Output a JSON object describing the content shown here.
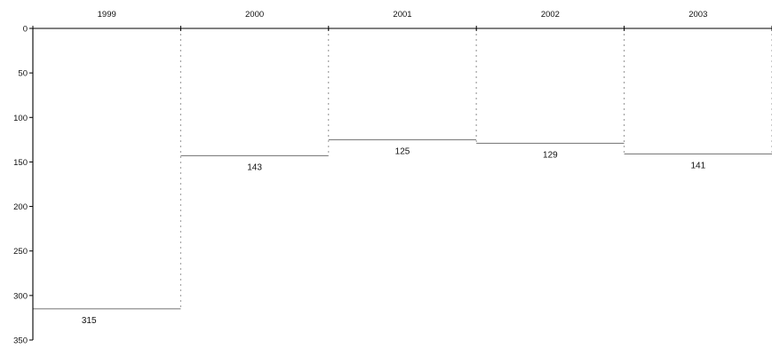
{
  "chart_data": {
    "type": "bar",
    "orientation": "vertical",
    "y_axis_inverted": true,
    "x_axis_position": "top",
    "categories": [
      "1999",
      "2000",
      "2001",
      "2002",
      "2003"
    ],
    "values": [
      315,
      143,
      125,
      129,
      141
    ],
    "data_labels": [
      "315",
      "143",
      "125",
      "129",
      "141"
    ],
    "ylim": [
      0,
      350
    ],
    "y_ticks": [
      0,
      50,
      100,
      150,
      200,
      250,
      300,
      350
    ],
    "y_tick_labels": [
      "0",
      "50",
      "100",
      "150",
      "200",
      "250",
      "300",
      "350"
    ],
    "title": "",
    "xlabel": "",
    "ylabel": "",
    "grid": false,
    "legend": "none",
    "bar_fill": "#ffffff",
    "bar_edge_color": "#9a9a9a"
  }
}
